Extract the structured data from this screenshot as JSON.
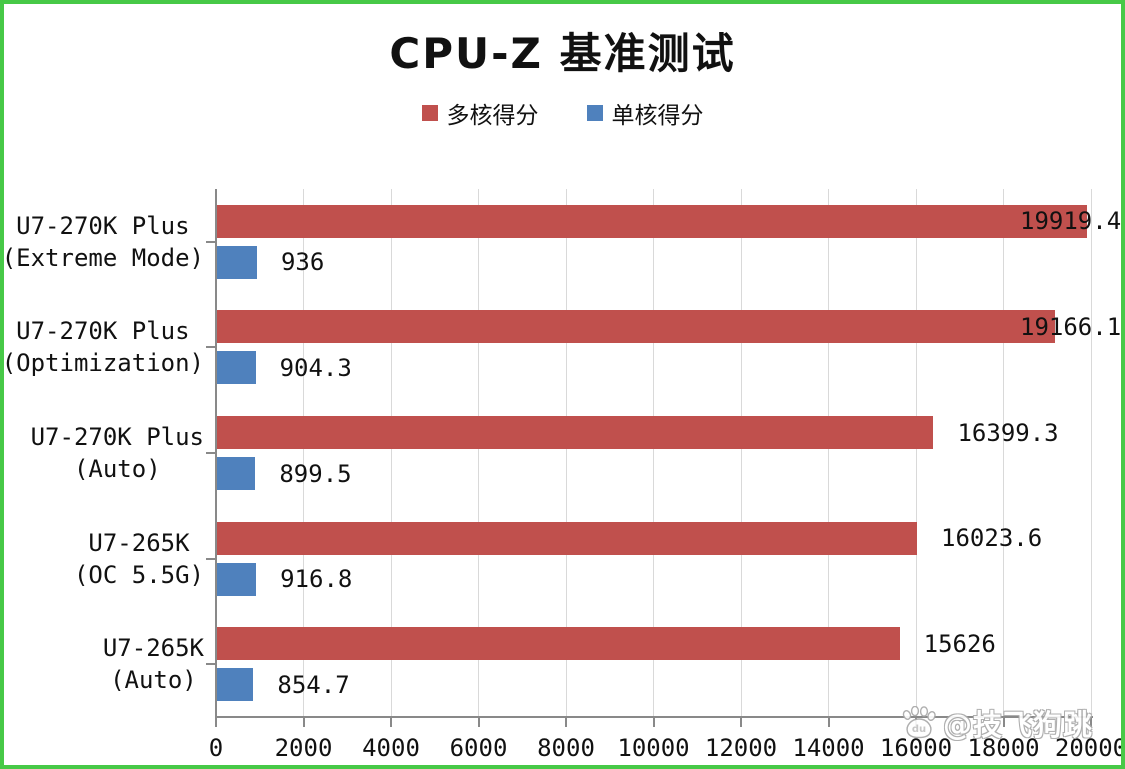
{
  "colors": {
    "frame": "#47C947",
    "multi_core_bar": "#C0504D",
    "single_core_bar": "#4F81BD",
    "gridline": "#D9D9D9",
    "axis": "#898989",
    "text": "#111111"
  },
  "chart_data": {
    "type": "bar",
    "orientation": "horizontal",
    "title": "CPU-Z 基准测试",
    "categories": [
      [
        "U7-270K Plus",
        "(Extreme Mode)"
      ],
      [
        "U7-270K Plus",
        "(Optimization)"
      ],
      [
        "U7-270K Plus",
        "(Auto)"
      ],
      [
        "U7-265K",
        "(OC 5.5G)"
      ],
      [
        "U7-265K",
        "(Auto)"
      ]
    ],
    "series": [
      {
        "name": "多核得分",
        "color": "#C0504D",
        "values": [
          19919.4,
          19166.1,
          16399.3,
          16023.6,
          15626
        ]
      },
      {
        "name": "单核得分",
        "color": "#4F81BD",
        "values": [
          936,
          904.3,
          899.5,
          916.8,
          854.7
        ]
      }
    ],
    "xlim": [
      0,
      20000
    ],
    "xticks": [
      0,
      2000,
      4000,
      6000,
      8000,
      10000,
      12000,
      14000,
      16000,
      18000,
      20000
    ],
    "xtick_labels": [
      "0",
      "2000",
      "4000",
      "6000",
      "8000",
      "10000",
      "12000",
      "14000",
      "16000",
      "18000",
      "20000"
    ],
    "grid": true,
    "legend_position": "top",
    "value_labels_shown": true
  },
  "watermark": {
    "icon": "paw-icon",
    "text": "@技飞狗跳"
  }
}
